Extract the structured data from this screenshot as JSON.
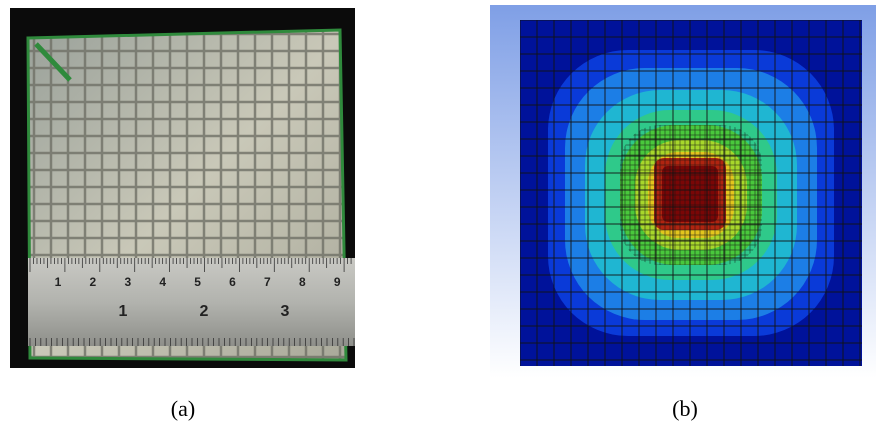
{
  "panels": [
    {
      "label": "(a)",
      "ruler": {
        "cm_labels": [
          "1",
          "2",
          "3",
          "4",
          "5",
          "6",
          "7",
          "8",
          "9"
        ],
        "inch_labels": [
          "1",
          "2",
          "3"
        ]
      }
    },
    {
      "label": "(b)"
    }
  ]
}
